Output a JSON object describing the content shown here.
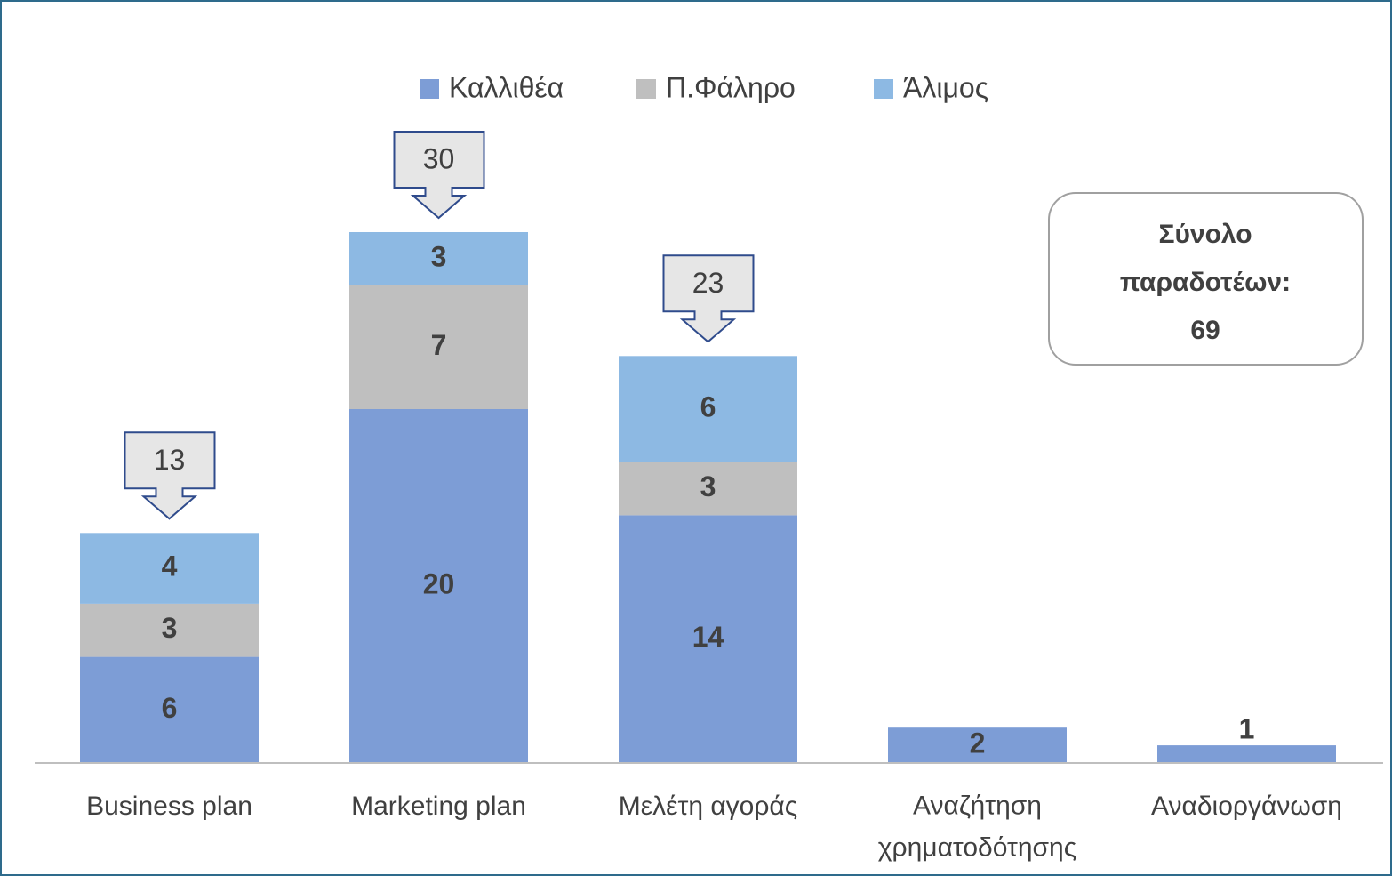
{
  "chart_data": {
    "type": "stacked_bar",
    "categories": [
      "Business plan",
      "Marketing plan",
      "Μελέτη αγοράς",
      "Αναζήτηση χρηματοδότησης",
      "Αναδιοργάνωση"
    ],
    "series": [
      {
        "name": "Καλλιθέα",
        "color": "#7d9dd6",
        "values": [
          6,
          20,
          14,
          2,
          1
        ]
      },
      {
        "name": "Π.Φάληρο",
        "color": "#bfbfbf",
        "values": [
          3,
          7,
          3,
          null,
          null
        ]
      },
      {
        "name": "Άλιμος",
        "color": "#8db9e3",
        "values": [
          4,
          3,
          6,
          null,
          null
        ]
      }
    ],
    "totals": [
      13,
      30,
      23,
      null,
      null
    ],
    "annotation": "Σύνολο παραδοτέων: 69",
    "ylim": [
      0,
      35
    ],
    "legend": "top"
  }
}
